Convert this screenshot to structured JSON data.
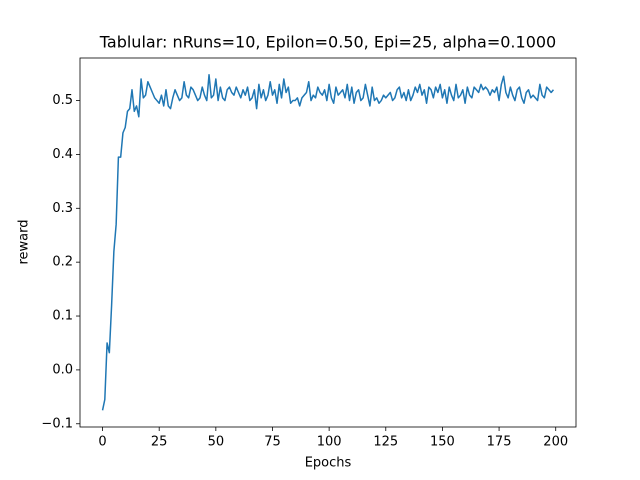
{
  "chart_data": {
    "type": "line",
    "title": "Tablular: nRuns=10, Epilon=0.50, Epi=25, alpha=0.1000",
    "xlabel": "Epochs",
    "ylabel": "reward",
    "color": "#1f77b4",
    "xlim": [
      -9.95,
      208.95
    ],
    "ylim": [
      -0.106,
      0.579
    ],
    "xticks": [
      0,
      25,
      50,
      75,
      100,
      125,
      150,
      175,
      200
    ],
    "yticks": [
      {
        "value": -0.1,
        "label": "−0.1"
      },
      {
        "value": 0,
        "label": "0.0"
      },
      0.1,
      0.2,
      0.3,
      0.4,
      0.5
    ],
    "x": [
      0,
      1,
      2,
      3,
      4,
      5,
      6,
      7,
      8,
      9,
      10,
      11,
      12,
      13,
      14,
      15,
      16,
      17,
      18,
      19,
      20,
      21,
      22,
      23,
      24,
      25,
      26,
      27,
      28,
      29,
      30,
      31,
      32,
      33,
      34,
      35,
      36,
      37,
      38,
      39,
      40,
      41,
      42,
      43,
      44,
      45,
      46,
      47,
      48,
      49,
      50,
      51,
      52,
      53,
      54,
      55,
      56,
      57,
      58,
      59,
      60,
      61,
      62,
      63,
      64,
      65,
      66,
      67,
      68,
      69,
      70,
      71,
      72,
      73,
      74,
      75,
      76,
      77,
      78,
      79,
      80,
      81,
      82,
      83,
      84,
      85,
      86,
      87,
      88,
      89,
      90,
      91,
      92,
      93,
      94,
      95,
      96,
      97,
      98,
      99,
      100,
      101,
      102,
      103,
      104,
      105,
      106,
      107,
      108,
      109,
      110,
      111,
      112,
      113,
      114,
      115,
      116,
      117,
      118,
      119,
      120,
      121,
      122,
      123,
      124,
      125,
      126,
      127,
      128,
      129,
      130,
      131,
      132,
      133,
      134,
      135,
      136,
      137,
      138,
      139,
      140,
      141,
      142,
      143,
      144,
      145,
      146,
      147,
      148,
      149,
      150,
      151,
      152,
      153,
      154,
      155,
      156,
      157,
      158,
      159,
      160,
      161,
      162,
      163,
      164,
      165,
      166,
      167,
      168,
      169,
      170,
      171,
      172,
      173,
      174,
      175,
      176,
      177,
      178,
      179,
      180,
      181,
      182,
      183,
      184,
      185,
      186,
      187,
      188,
      189,
      190,
      191,
      192,
      193,
      194,
      195,
      196,
      197,
      198,
      199
    ],
    "values": [
      -0.075,
      -0.055,
      0.05,
      0.032,
      0.12,
      0.22,
      0.27,
      0.395,
      0.395,
      0.44,
      0.45,
      0.48,
      0.485,
      0.52,
      0.48,
      0.49,
      0.47,
      0.54,
      0.505,
      0.51,
      0.535,
      0.525,
      0.515,
      0.505,
      0.5,
      0.495,
      0.51,
      0.49,
      0.52,
      0.49,
      0.485,
      0.505,
      0.52,
      0.51,
      0.5,
      0.505,
      0.535,
      0.51,
      0.505,
      0.525,
      0.52,
      0.51,
      0.5,
      0.505,
      0.525,
      0.51,
      0.5,
      0.548,
      0.505,
      0.51,
      0.54,
      0.5,
      0.525,
      0.505,
      0.5,
      0.52,
      0.525,
      0.515,
      0.51,
      0.525,
      0.515,
      0.505,
      0.52,
      0.51,
      0.525,
      0.5,
      0.505,
      0.52,
      0.485,
      0.53,
      0.505,
      0.52,
      0.5,
      0.51,
      0.535,
      0.51,
      0.52,
      0.495,
      0.53,
      0.505,
      0.54,
      0.515,
      0.525,
      0.495,
      0.5,
      0.5,
      0.505,
      0.49,
      0.505,
      0.51,
      0.515,
      0.535,
      0.5,
      0.51,
      0.505,
      0.525,
      0.515,
      0.51,
      0.52,
      0.5,
      0.53,
      0.505,
      0.495,
      0.525,
      0.51,
      0.515,
      0.52,
      0.505,
      0.53,
      0.5,
      0.525,
      0.495,
      0.515,
      0.52,
      0.5,
      0.505,
      0.53,
      0.51,
      0.49,
      0.525,
      0.5,
      0.505,
      0.495,
      0.5,
      0.51,
      0.505,
      0.51,
      0.515,
      0.5,
      0.505,
      0.52,
      0.525,
      0.505,
      0.515,
      0.5,
      0.52,
      0.5,
      0.51,
      0.525,
      0.515,
      0.53,
      0.51,
      0.52,
      0.495,
      0.525,
      0.52,
      0.505,
      0.525,
      0.515,
      0.53,
      0.505,
      0.52,
      0.495,
      0.525,
      0.51,
      0.5,
      0.53,
      0.505,
      0.51,
      0.52,
      0.495,
      0.525,
      0.51,
      0.505,
      0.525,
      0.52,
      0.515,
      0.53,
      0.52,
      0.525,
      0.52,
      0.51,
      0.52,
      0.515,
      0.525,
      0.5,
      0.53,
      0.545,
      0.515,
      0.505,
      0.525,
      0.51,
      0.5,
      0.52,
      0.525,
      0.505,
      0.495,
      0.515,
      0.52,
      0.505,
      0.51,
      0.505,
      0.5,
      0.53,
      0.51,
      0.505,
      0.525,
      0.52,
      0.515,
      0.52
    ]
  }
}
